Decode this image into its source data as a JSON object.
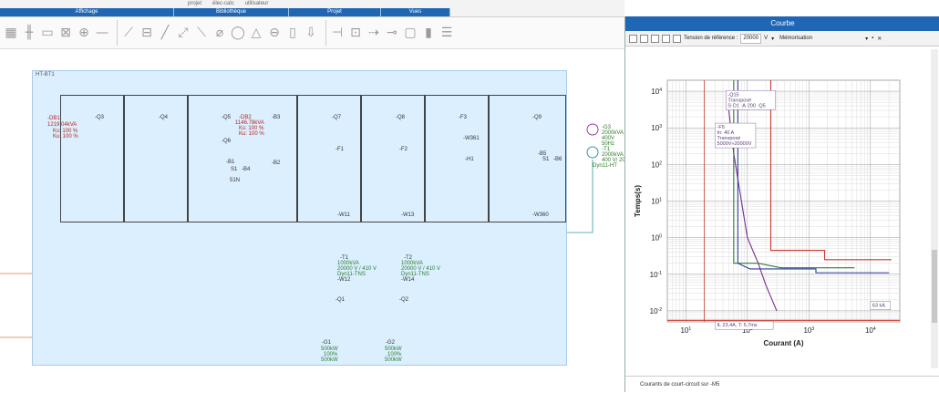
{
  "ribbon": {
    "top_items": [
      "projet",
      "élec-calc",
      "utilisateur"
    ],
    "groups": [
      "Affichage",
      "Bibliothèque",
      "Projet",
      "Vues"
    ]
  },
  "diagram": {
    "frame_label": "HT-BT1",
    "cells": [
      {
        "breaker": "-Q3",
        "extra": [
          "-DB1",
          "1219.04kVA",
          "Ks: 100 %",
          "Ku: 100 %"
        ]
      },
      {
        "breaker": "-Q4"
      },
      {
        "breaker": "-Q5",
        "extra": [
          "-DB2",
          "1146.78kVA",
          "Ks: 100 %",
          "Ku: 100 %",
          "-Q6",
          "-B1",
          "-B4",
          "S1",
          "51N"
        ]
      },
      {
        "breaker": "-B3",
        "extra": [
          "-B2"
        ]
      },
      {
        "breaker": "-Q7",
        "extra": [
          "-F1",
          "-W11"
        ]
      },
      {
        "breaker": "-Q8",
        "extra": [
          "-F2",
          "-W13"
        ]
      },
      {
        "breaker": "-F3",
        "extra": [
          "-W361",
          "-H1"
        ]
      },
      {
        "breaker": "-Q9",
        "extra": [
          "-B5",
          "S1",
          "-B6",
          "-W360"
        ]
      }
    ],
    "gen_top": [
      "-G3",
      "2000kVA",
      "400V",
      "50Hz",
      "-T1",
      "2000kVA",
      "400 V/ 20",
      "Dyn11-HT"
    ],
    "transformers": [
      {
        "name": "-T1",
        "lines": [
          "1000kVA",
          "20000 V / 410 V",
          "Dyn11-TNS"
        ],
        "cable": "-W12",
        "breaker": "-Q1",
        "gen": "-G1",
        "gen_lines": [
          "500kW",
          "100%",
          "500kW"
        ]
      },
      {
        "name": "-T2",
        "lines": [
          "1000kVA",
          "20000 V / 410 V",
          "Dyn11-TNS"
        ],
        "cable": "-W14",
        "breaker": "-Q2",
        "gen": "-G2",
        "gen_lines": [
          "500kW",
          "100%",
          "500kW"
        ]
      }
    ]
  },
  "panel": {
    "title": "Courbe",
    "ref_label": "Tension de référence :",
    "ref_value": "20000",
    "ref_unit": "V",
    "memo_label": "Mémorisation",
    "footer": "Courants de court-circuit sur -M5"
  },
  "chart_data": {
    "type": "line",
    "xlabel": "Courant (A)",
    "ylabel": "Temps(s)",
    "x_scale": "log",
    "y_scale": "log",
    "xlim": [
      5,
      30000
    ],
    "ylim": [
      0.005,
      20000
    ],
    "x_ticks": [
      "10^1",
      "10^2",
      "10^3",
      "10^4"
    ],
    "y_ticks": [
      "10^4",
      "10^3",
      "10^2",
      "10^1",
      "10^0",
      "10^-1",
      "10^-2"
    ],
    "grid": true,
    "annotations": [
      {
        "text": [
          "-Q15",
          "Transposé",
          "S·D1 ·A·200 ·Q5"
        ],
        "x": 45,
        "y": 7000
      },
      {
        "text": [
          "-F5",
          "In: 40 A",
          "Transposé",
          "5000V»20000V"
        ],
        "x": 30,
        "y": 900
      },
      {
        "text": [
          "IL 23,4A, T: 5,7ms"
        ],
        "x": 30,
        "y": 0.0035
      },
      {
        "text": [
          "63 kA"
        ],
        "x": 10000,
        "y": 0.012
      }
    ],
    "series": [
      {
        "color": "#c8382e",
        "x": [
          240,
          240,
          450,
          450,
          1800,
          1800,
          22000
        ],
        "y": [
          20000,
          0.45,
          0.45,
          0.45,
          0.45,
          0.25,
          0.25
        ]
      },
      {
        "color": "#7a2c8f",
        "x": [
          50,
          60,
          80,
          100,
          150,
          200,
          300
        ],
        "y": [
          3000,
          200,
          10,
          1,
          0.2,
          0.05,
          0.01
        ]
      },
      {
        "color": "#2d7d2d",
        "x": [
          60,
          60,
          70,
          70,
          150,
          350,
          5500
        ],
        "y": [
          20000,
          0.2,
          0.2,
          0.2,
          0.2,
          0.15,
          0.15
        ]
      },
      {
        "color": "#2b3c9a",
        "x": [
          70,
          70,
          110,
          400,
          1300,
          1300,
          20000
        ],
        "y": [
          20000,
          0.2,
          0.14,
          0.14,
          0.14,
          0.11,
          0.11
        ]
      },
      {
        "color": "#c8382e",
        "x": [
          5,
          30000
        ],
        "y": [
          0.0055,
          0.0055
        ]
      }
    ],
    "vertical_markers": [
      {
        "x": 20,
        "color": "#c8382e"
      }
    ]
  }
}
